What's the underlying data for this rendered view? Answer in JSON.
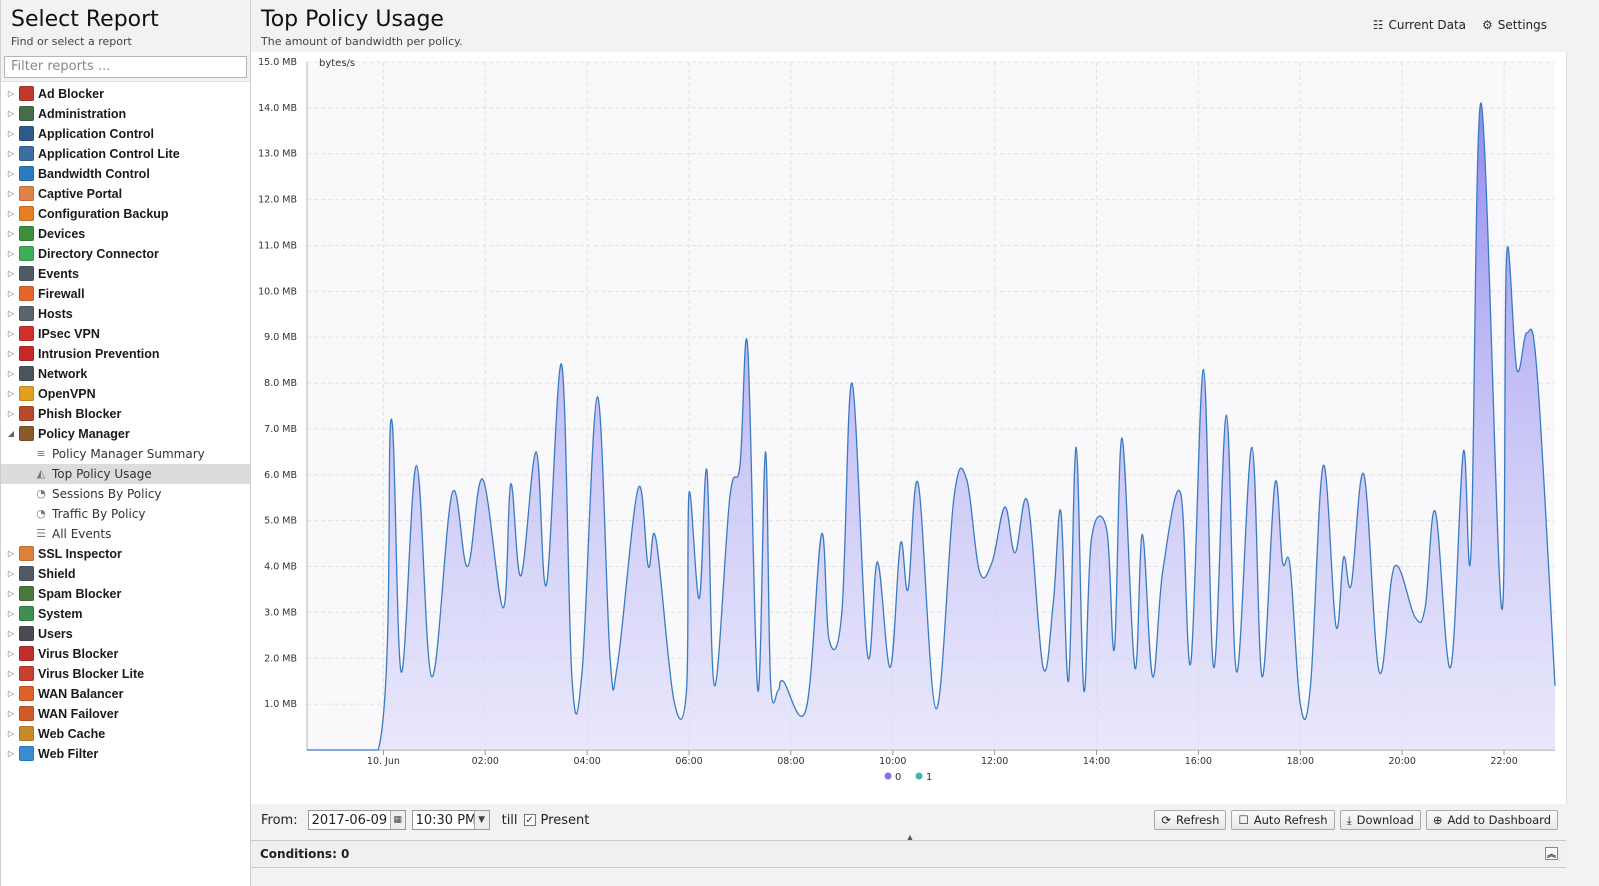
{
  "sidebar": {
    "title": "Select Report",
    "subtitle": "Find or select a report",
    "filter_placeholder": "Filter reports ...",
    "categories": [
      {
        "label": "Ad Blocker",
        "icon": "ad-blocker-icon",
        "color": "#c0392b",
        "expanded": false
      },
      {
        "label": "Administration",
        "icon": "administration-icon",
        "color": "#4a6b4a",
        "expanded": false
      },
      {
        "label": "Application Control",
        "icon": "application-control-icon",
        "color": "#2f5b8a",
        "expanded": false
      },
      {
        "label": "Application Control Lite",
        "icon": "application-control-lite-icon",
        "color": "#3b6ea5",
        "expanded": false
      },
      {
        "label": "Bandwidth Control",
        "icon": "bandwidth-control-icon",
        "color": "#2a7bbf",
        "expanded": false
      },
      {
        "label": "Captive Portal",
        "icon": "captive-portal-icon",
        "color": "#e0824a",
        "expanded": false
      },
      {
        "label": "Configuration Backup",
        "icon": "configuration-backup-icon",
        "color": "#e67e22",
        "expanded": false
      },
      {
        "label": "Devices",
        "icon": "devices-icon",
        "color": "#3c8d3c",
        "expanded": false
      },
      {
        "label": "Directory Connector",
        "icon": "directory-connector-icon",
        "color": "#3fae5a",
        "expanded": false
      },
      {
        "label": "Events",
        "icon": "events-icon",
        "color": "#505a66",
        "expanded": false
      },
      {
        "label": "Firewall",
        "icon": "firewall-icon",
        "color": "#e8652a",
        "expanded": false
      },
      {
        "label": "Hosts",
        "icon": "hosts-icon",
        "color": "#5a6470",
        "expanded": false
      },
      {
        "label": "IPsec VPN",
        "icon": "ipsec-vpn-icon",
        "color": "#d4302b",
        "expanded": false
      },
      {
        "label": "Intrusion Prevention",
        "icon": "intrusion-prevention-icon",
        "color": "#c62828",
        "expanded": false
      },
      {
        "label": "Network",
        "icon": "network-icon",
        "color": "#4a5560",
        "expanded": false
      },
      {
        "label": "OpenVPN",
        "icon": "openvpn-icon",
        "color": "#e0a020",
        "expanded": false
      },
      {
        "label": "Phish Blocker",
        "icon": "phish-blocker-icon",
        "color": "#b84a2a",
        "expanded": false
      },
      {
        "label": "Policy Manager",
        "icon": "policy-manager-icon",
        "color": "#8a5a2a",
        "expanded": true,
        "children": [
          {
            "label": "Policy Manager Summary",
            "icon": "text-lines-icon",
            "glyph": "≡",
            "selected": false
          },
          {
            "label": "Top Policy Usage",
            "icon": "area-chart-icon",
            "glyph": "◭",
            "selected": true
          },
          {
            "label": "Sessions By Policy",
            "icon": "pie-chart-icon",
            "glyph": "◔",
            "selected": false
          },
          {
            "label": "Traffic By Policy",
            "icon": "pie-chart-icon",
            "glyph": "◔",
            "selected": false
          },
          {
            "label": "All Events",
            "icon": "list-icon",
            "glyph": "☰",
            "selected": false
          }
        ]
      },
      {
        "label": "SSL Inspector",
        "icon": "ssl-inspector-icon",
        "color": "#e0803a",
        "expanded": false
      },
      {
        "label": "Shield",
        "icon": "shield-icon",
        "color": "#505a66",
        "expanded": false
      },
      {
        "label": "Spam Blocker",
        "icon": "spam-blocker-icon",
        "color": "#4a7a3a",
        "expanded": false
      },
      {
        "label": "System",
        "icon": "system-icon",
        "color": "#3f8f4f",
        "expanded": false
      },
      {
        "label": "Users",
        "icon": "users-icon",
        "color": "#4a4a55",
        "expanded": false
      },
      {
        "label": "Virus Blocker",
        "icon": "virus-blocker-icon",
        "color": "#c0302a",
        "expanded": false
      },
      {
        "label": "Virus Blocker Lite",
        "icon": "virus-blocker-lite-icon",
        "color": "#c84030",
        "expanded": false
      },
      {
        "label": "WAN Balancer",
        "icon": "wan-balancer-icon",
        "color": "#e0602a",
        "expanded": false
      },
      {
        "label": "WAN Failover",
        "icon": "wan-failover-icon",
        "color": "#d05a2a",
        "expanded": false
      },
      {
        "label": "Web Cache",
        "icon": "web-cache-icon",
        "color": "#c98a2a",
        "expanded": false
      },
      {
        "label": "Web Filter",
        "icon": "web-filter-icon",
        "color": "#3a8ed0",
        "expanded": false
      }
    ]
  },
  "report": {
    "title": "Top Policy Usage",
    "subtitle": "The amount of bandwidth per policy.",
    "current_data_label": "Current Data",
    "settings_label": "Settings"
  },
  "chart_data": {
    "type": "area",
    "unit": "bytes/s",
    "yaxis_ticks": [
      "1.0 MB",
      "2.0 MB",
      "3.0 MB",
      "4.0 MB",
      "5.0 MB",
      "6.0 MB",
      "7.0 MB",
      "8.0 MB",
      "9.0 MB",
      "10.0 MB",
      "11.0 MB",
      "12.0 MB",
      "13.0 MB",
      "14.0 MB",
      "15.0 MB"
    ],
    "ylim": [
      0,
      15
    ],
    "xaxis_ticks": [
      {
        "label": "10. Jun",
        "hour": 0
      },
      {
        "label": "02:00",
        "hour": 2
      },
      {
        "label": "04:00",
        "hour": 4
      },
      {
        "label": "06:00",
        "hour": 6
      },
      {
        "label": "08:00",
        "hour": 8
      },
      {
        "label": "10:00",
        "hour": 10
      },
      {
        "label": "12:00",
        "hour": 12
      },
      {
        "label": "14:00",
        "hour": 14
      },
      {
        "label": "16:00",
        "hour": 16
      },
      {
        "label": "18:00",
        "hour": 18
      },
      {
        "label": "20:00",
        "hour": 20
      },
      {
        "label": "22:00",
        "hour": 22
      }
    ],
    "xlim": [
      -1.5,
      23
    ],
    "grid": true,
    "legend_position": "bottom-center",
    "series": [
      {
        "name": "0",
        "color": "#7b74e6",
        "points": [
          [
            -1.5,
            0
          ],
          [
            -0.1,
            0
          ],
          [
            0.15,
            7.2
          ],
          [
            0.35,
            1.7
          ],
          [
            0.65,
            6.2
          ],
          [
            0.95,
            1.6
          ],
          [
            1.35,
            5.6
          ],
          [
            1.65,
            4.0
          ],
          [
            1.95,
            5.9
          ],
          [
            2.35,
            3.1
          ],
          [
            2.5,
            5.8
          ],
          [
            2.7,
            3.8
          ],
          [
            3.0,
            6.5
          ],
          [
            3.2,
            3.6
          ],
          [
            3.5,
            8.4
          ],
          [
            3.7,
            1.6
          ],
          [
            3.9,
            1.7
          ],
          [
            4.2,
            7.7
          ],
          [
            4.45,
            2.0
          ],
          [
            4.6,
            1.9
          ],
          [
            5.0,
            5.7
          ],
          [
            5.2,
            4.0
          ],
          [
            5.35,
            4.6
          ],
          [
            5.7,
            1.1
          ],
          [
            5.95,
            1.3
          ],
          [
            6.0,
            5.6
          ],
          [
            6.2,
            3.3
          ],
          [
            6.35,
            6.1
          ],
          [
            6.5,
            1.4
          ],
          [
            6.8,
            5.5
          ],
          [
            7.0,
            6.2
          ],
          [
            7.15,
            8.8
          ],
          [
            7.35,
            1.3
          ],
          [
            7.5,
            6.5
          ],
          [
            7.6,
            1.5
          ],
          [
            7.75,
            1.3
          ],
          [
            7.85,
            1.5
          ],
          [
            8.3,
            0.9
          ],
          [
            8.6,
            4.7
          ],
          [
            8.75,
            2.4
          ],
          [
            9.0,
            3.0
          ],
          [
            9.2,
            8.0
          ],
          [
            9.5,
            2.1
          ],
          [
            9.7,
            4.1
          ],
          [
            9.95,
            1.8
          ],
          [
            10.15,
            4.5
          ],
          [
            10.3,
            3.5
          ],
          [
            10.5,
            5.8
          ],
          [
            10.85,
            0.9
          ],
          [
            11.2,
            5.5
          ],
          [
            11.45,
            5.9
          ],
          [
            11.7,
            3.9
          ],
          [
            11.95,
            4.1
          ],
          [
            12.2,
            5.3
          ],
          [
            12.4,
            4.3
          ],
          [
            12.65,
            5.4
          ],
          [
            12.95,
            1.8
          ],
          [
            13.15,
            3.2
          ],
          [
            13.3,
            5.2
          ],
          [
            13.45,
            1.5
          ],
          [
            13.6,
            6.6
          ],
          [
            13.75,
            1.3
          ],
          [
            13.9,
            4.6
          ],
          [
            14.2,
            4.8
          ],
          [
            14.35,
            2.2
          ],
          [
            14.5,
            6.8
          ],
          [
            14.75,
            1.8
          ],
          [
            14.9,
            4.7
          ],
          [
            15.1,
            1.6
          ],
          [
            15.3,
            3.9
          ],
          [
            15.65,
            5.6
          ],
          [
            15.85,
            1.9
          ],
          [
            16.1,
            8.3
          ],
          [
            16.3,
            1.8
          ],
          [
            16.55,
            7.3
          ],
          [
            16.75,
            1.7
          ],
          [
            17.05,
            6.6
          ],
          [
            17.25,
            1.6
          ],
          [
            17.5,
            5.8
          ],
          [
            17.65,
            4.1
          ],
          [
            17.8,
            4.0
          ],
          [
            18.0,
            1.0
          ],
          [
            18.2,
            1.4
          ],
          [
            18.45,
            6.2
          ],
          [
            18.7,
            2.7
          ],
          [
            18.85,
            4.2
          ],
          [
            19.0,
            3.6
          ],
          [
            19.25,
            6.0
          ],
          [
            19.55,
            1.7
          ],
          [
            19.85,
            4.0
          ],
          [
            20.25,
            2.9
          ],
          [
            20.45,
            3.1
          ],
          [
            20.65,
            5.2
          ],
          [
            20.95,
            1.8
          ],
          [
            21.2,
            6.5
          ],
          [
            21.35,
            4.3
          ],
          [
            21.55,
            14.1
          ],
          [
            21.95,
            3.1
          ],
          [
            22.05,
            10.8
          ],
          [
            22.25,
            8.3
          ],
          [
            22.45,
            9.1
          ],
          [
            22.65,
            8.2
          ],
          [
            23.0,
            1.4
          ]
        ]
      },
      {
        "name": "1",
        "color": "#3fb8a8",
        "points": []
      }
    ]
  },
  "range": {
    "from_label": "From:",
    "date": "2017-06-09",
    "time": "10:30 PM",
    "till_label": "till",
    "present_label": "Present",
    "present_checked": true
  },
  "actions": {
    "refresh": "Refresh",
    "auto_refresh": "Auto Refresh",
    "download": "Download",
    "add_dashboard": "Add to Dashboard"
  },
  "conditions": {
    "label": "Conditions: 0"
  }
}
